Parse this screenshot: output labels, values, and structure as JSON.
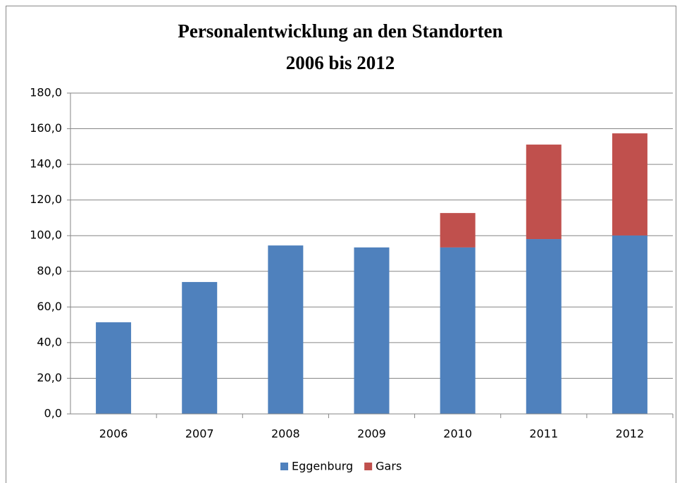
{
  "chart_data": {
    "type": "stacked_bar",
    "title": [
      "Personalentwicklung an den Standorten",
      "2006 bis 2012"
    ],
    "categories": [
      "2006",
      "2007",
      "2008",
      "2009",
      "2010",
      "2011",
      "2012"
    ],
    "series": [
      {
        "name": "Eggenburg",
        "color": "#4f81bd",
        "values": [
          51.4,
          74.0,
          94.5,
          93.4,
          93.4,
          98.1,
          100.1
        ]
      },
      {
        "name": "Gars",
        "color": "#c0504d",
        "values": [
          null,
          null,
          null,
          null,
          19.3,
          53.0,
          57.3
        ]
      }
    ],
    "ylim": [
      0,
      180
    ],
    "yticks": [
      {
        "value": 0,
        "label": "0,0"
      },
      {
        "value": 20,
        "label": "20,0"
      },
      {
        "value": 40,
        "label": "40,0"
      },
      {
        "value": 60,
        "label": "60,0"
      },
      {
        "value": 80,
        "label": "80,0"
      },
      {
        "value": 100,
        "label": "100,0"
      },
      {
        "value": 120,
        "label": "120,0"
      },
      {
        "value": 140,
        "label": "140,0"
      },
      {
        "value": 160,
        "label": "160,0"
      },
      {
        "value": 180,
        "label": "180,0"
      }
    ],
    "grid": true,
    "legend": "bottom"
  }
}
